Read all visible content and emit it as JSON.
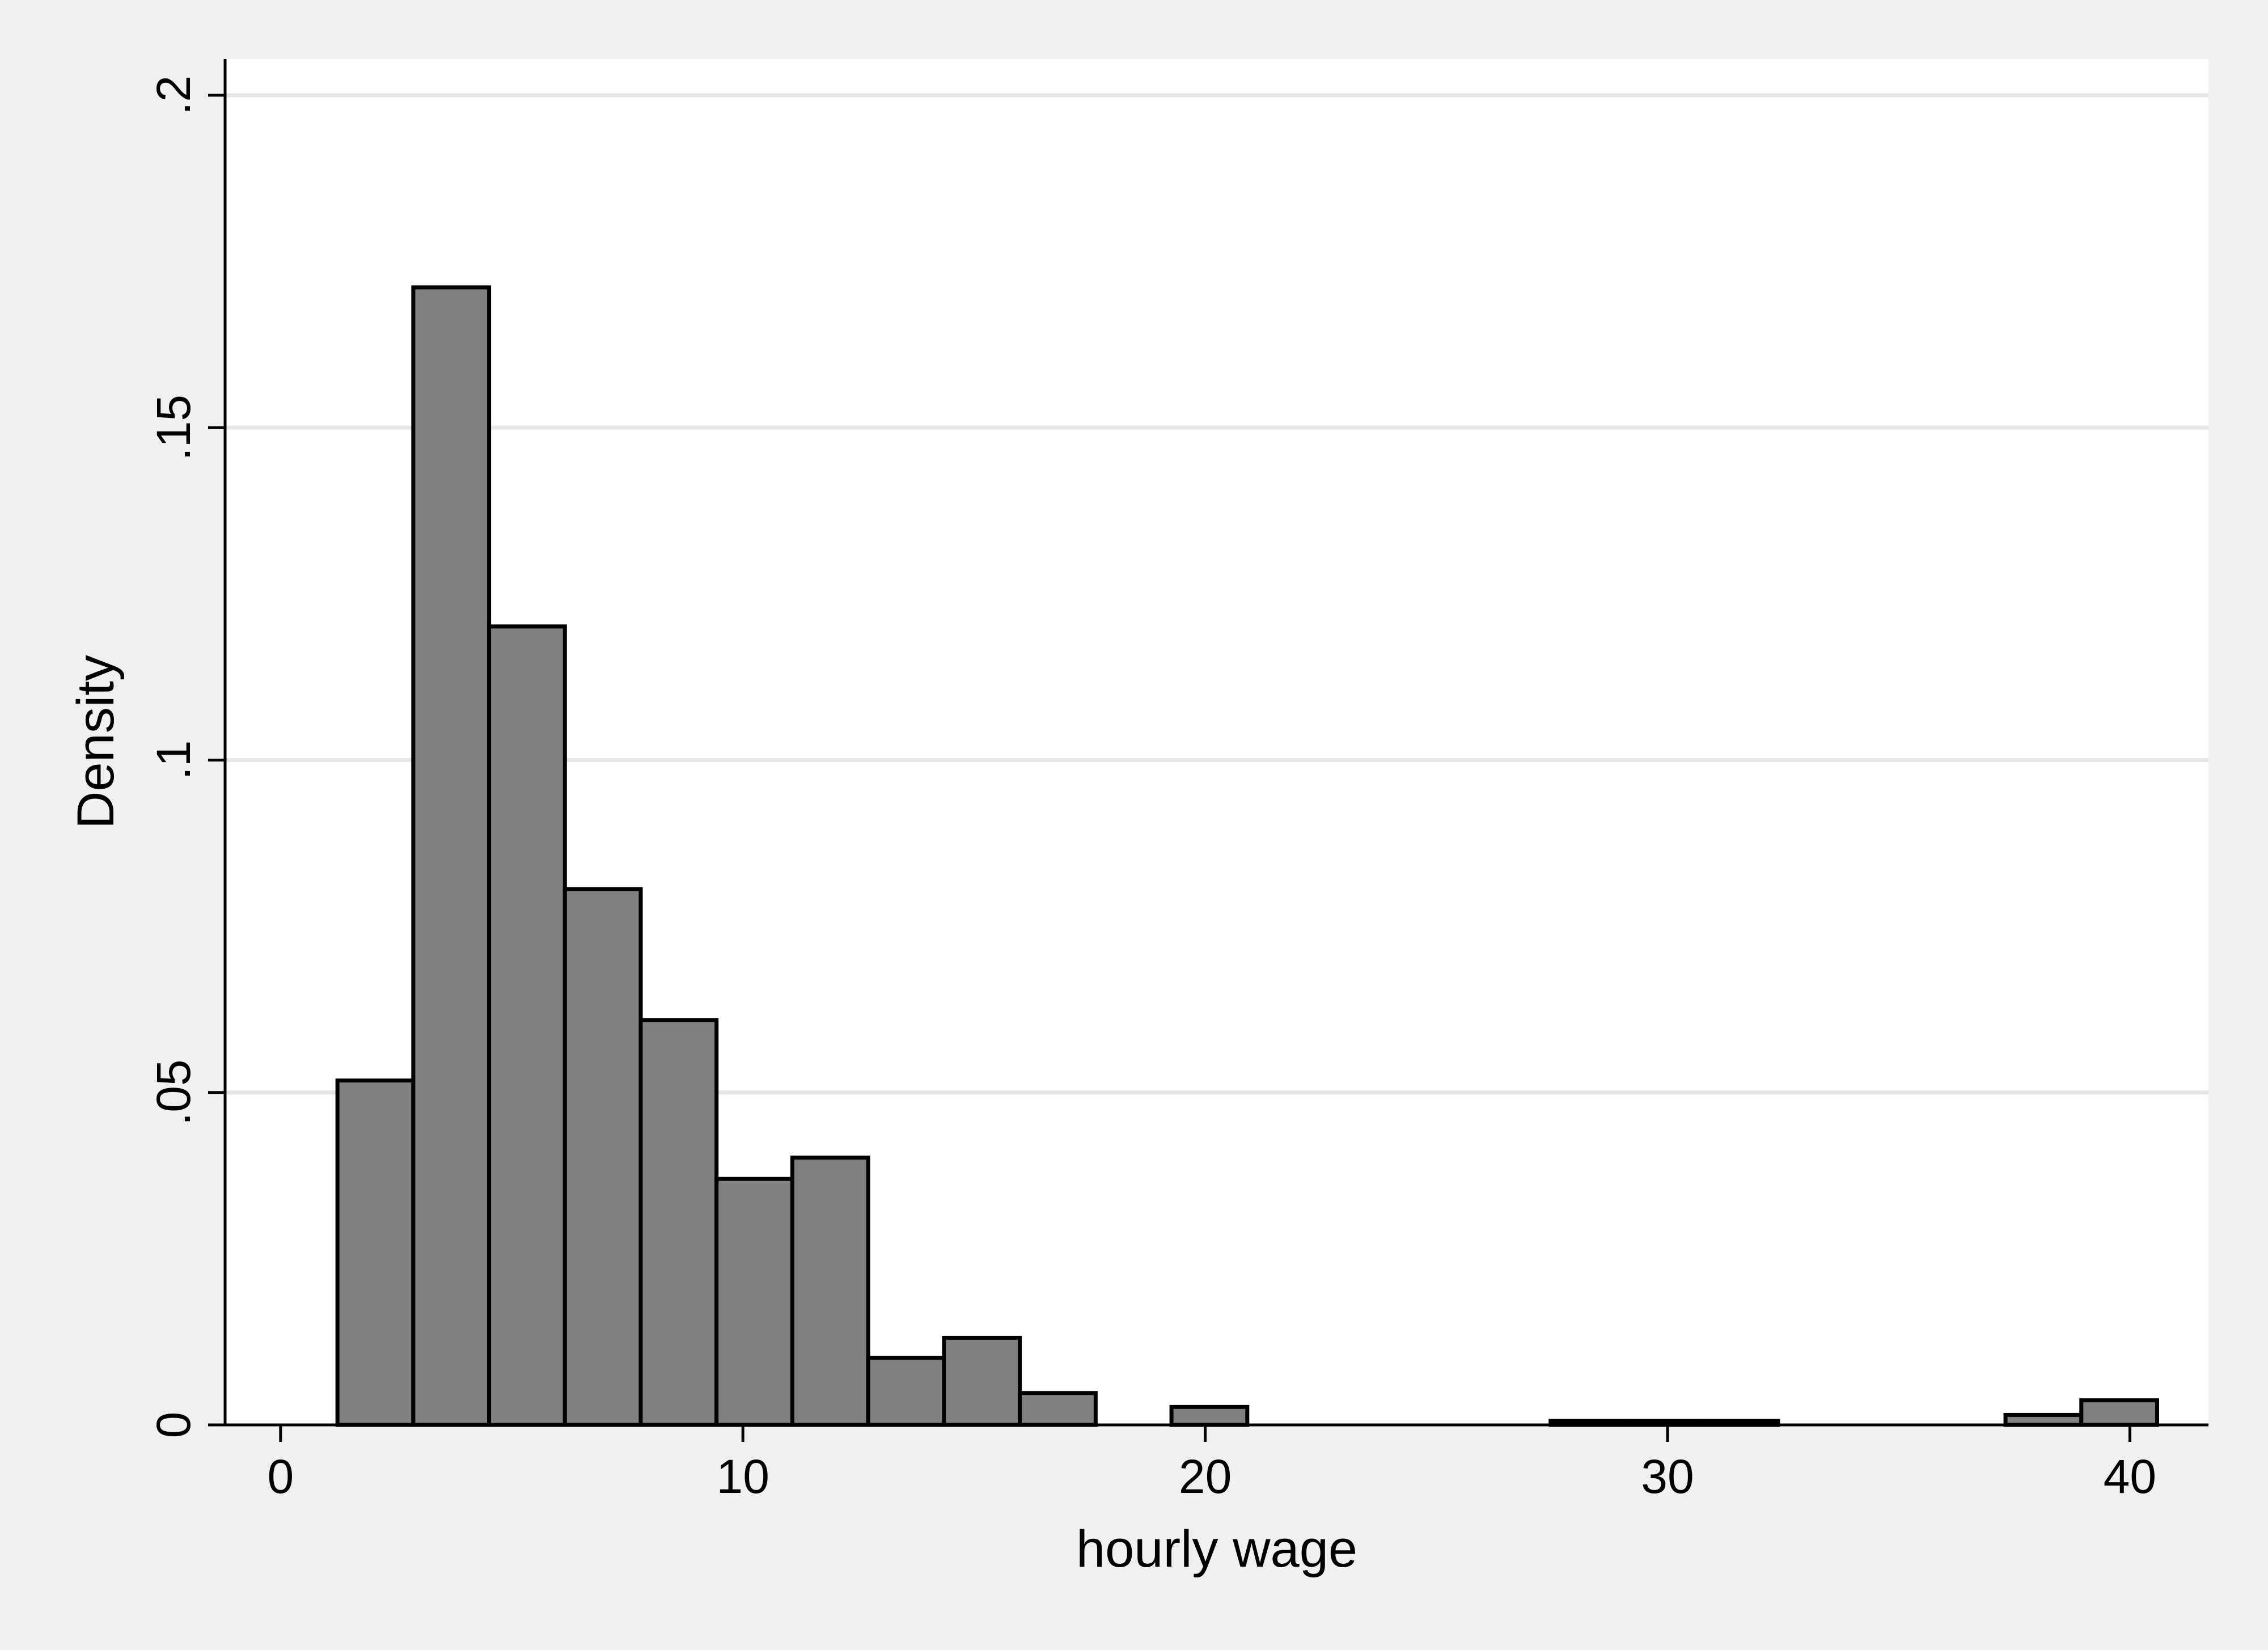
{
  "chart_data": {
    "type": "bar",
    "subtype": "histogram",
    "xlabel": "hourly wage",
    "ylabel": "Density",
    "xlim": [
      -1.2,
      41.7
    ],
    "ylim": [
      0,
      0.2
    ],
    "x_ticks": [
      0,
      10,
      20,
      30,
      40
    ],
    "x_tick_labels": [
      "0",
      "10",
      "20",
      "30",
      "40"
    ],
    "y_ticks": [
      0,
      0.05,
      0.1,
      0.15,
      0.2
    ],
    "y_tick_labels": [
      "0",
      ".05",
      ".1",
      ".15",
      ".2"
    ],
    "grid": true,
    "legend": "none",
    "bin_width": 1.64,
    "bins": [
      {
        "start": 1.23,
        "end": 2.87,
        "value": 0.0518
      },
      {
        "start": 2.87,
        "end": 4.51,
        "value": 0.1711
      },
      {
        "start": 4.51,
        "end": 6.15,
        "value": 0.1201
      },
      {
        "start": 6.15,
        "end": 7.79,
        "value": 0.0806
      },
      {
        "start": 7.79,
        "end": 9.43,
        "value": 0.0609
      },
      {
        "start": 9.43,
        "end": 11.07,
        "value": 0.037
      },
      {
        "start": 11.07,
        "end": 12.71,
        "value": 0.0402
      },
      {
        "start": 12.71,
        "end": 14.35,
        "value": 0.0101
      },
      {
        "start": 14.35,
        "end": 15.99,
        "value": 0.0131
      },
      {
        "start": 15.99,
        "end": 17.63,
        "value": 0.0048
      },
      {
        "start": 17.63,
        "end": 19.27,
        "value": 0.0
      },
      {
        "start": 19.27,
        "end": 20.91,
        "value": 0.0027
      },
      {
        "start": 20.91,
        "end": 22.55,
        "value": 0.0
      },
      {
        "start": 22.55,
        "end": 24.19,
        "value": 0.0
      },
      {
        "start": 24.19,
        "end": 25.83,
        "value": 0.0
      },
      {
        "start": 25.83,
        "end": 27.47,
        "value": 0.0
      },
      {
        "start": 27.47,
        "end": 29.11,
        "value": 0.0006
      },
      {
        "start": 29.11,
        "end": 30.75,
        "value": 0.0006
      },
      {
        "start": 30.75,
        "end": 32.39,
        "value": 0.0006
      },
      {
        "start": 32.39,
        "end": 34.03,
        "value": 0.0
      },
      {
        "start": 34.03,
        "end": 35.67,
        "value": 0.0
      },
      {
        "start": 35.67,
        "end": 37.31,
        "value": 0.0
      },
      {
        "start": 37.31,
        "end": 38.95,
        "value": 0.0015
      },
      {
        "start": 38.95,
        "end": 40.59,
        "value": 0.0037
      }
    ],
    "colors": {
      "bar_fill": "#808080",
      "bar_edge": "#000000",
      "plot_background": "#ffffff",
      "outer_background": "#f0f0f0",
      "gridline": "#e6e6e6"
    }
  }
}
